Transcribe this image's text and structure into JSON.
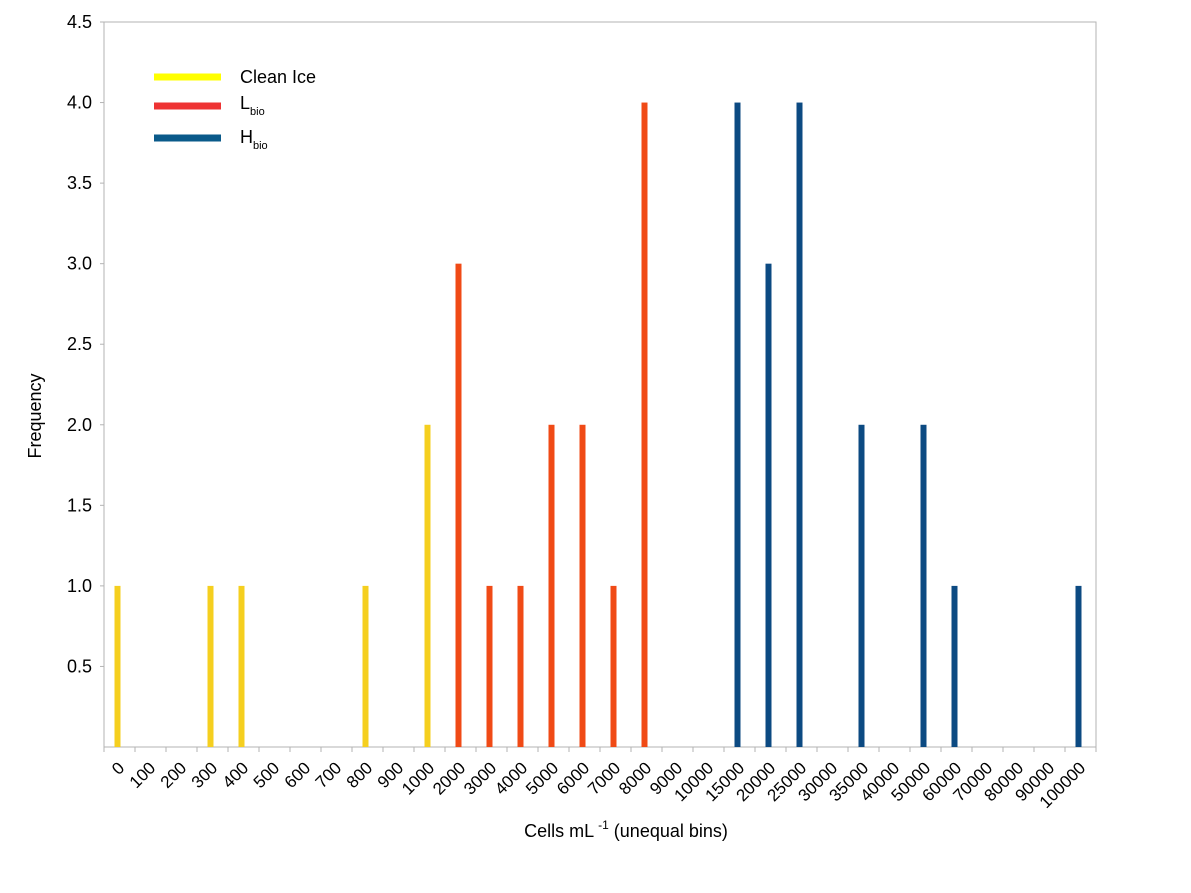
{
  "chart_data": {
    "type": "bar",
    "title": "",
    "xlabel": "Cells mL",
    "xlabel_superscript": "-1",
    "xlabel_suffix": " (unequal bins)",
    "ylabel": "Frequency",
    "ylim": [
      0,
      4.5
    ],
    "yticks": [
      "0.5",
      "1.0",
      "1.5",
      "2.0",
      "2.5",
      "3.0",
      "3.5",
      "4.0",
      "4.5"
    ],
    "ytick_values": [
      0.5,
      1.0,
      1.5,
      2.0,
      2.5,
      3.0,
      3.5,
      4.0,
      4.5
    ],
    "grid": false,
    "legend_position": "top-left",
    "categories": [
      "0",
      "100",
      "200",
      "300",
      "400",
      "500",
      "600",
      "700",
      "800",
      "900",
      "1000",
      "2000",
      "3000",
      "4000",
      "5000",
      "6000",
      "7000",
      "8000",
      "9000",
      "10000",
      "15000",
      "20000",
      "25000",
      "30000",
      "35000",
      "40000",
      "50000",
      "60000",
      "70000",
      "80000",
      "90000",
      "100000"
    ],
    "series": [
      {
        "name": "Clean Ice",
        "legend_main": "Clean Ice",
        "legend_sub": "",
        "legend_color": "#ffff00",
        "color": "#f5cf1f",
        "values": [
          1,
          0,
          0,
          1,
          1,
          0,
          0,
          0,
          1,
          0,
          2,
          0,
          0,
          0,
          0,
          0,
          0,
          0,
          0,
          0,
          0,
          0,
          0,
          0,
          0,
          0,
          0,
          0,
          0,
          0,
          0,
          0
        ]
      },
      {
        "name": "Lbio",
        "legend_main": "L",
        "legend_sub": "bio",
        "legend_color": "#ee3333",
        "color": "#f04a16",
        "values": [
          0,
          0,
          0,
          0,
          0,
          0,
          0,
          0,
          0,
          0,
          0,
          3,
          1,
          1,
          2,
          2,
          1,
          4,
          0,
          0,
          0,
          0,
          0,
          0,
          0,
          0,
          0,
          0,
          0,
          0,
          0,
          0
        ]
      },
      {
        "name": "Hbio",
        "legend_main": "H",
        "legend_sub": "bio",
        "legend_color": "#0a5a8a",
        "color": "#0c4a82",
        "values": [
          0,
          0,
          0,
          0,
          0,
          0,
          0,
          0,
          0,
          0,
          0,
          0,
          0,
          0,
          0,
          0,
          0,
          0,
          0,
          0,
          4,
          3,
          4,
          0,
          2,
          0,
          2,
          1,
          0,
          0,
          0,
          1
        ]
      }
    ]
  }
}
